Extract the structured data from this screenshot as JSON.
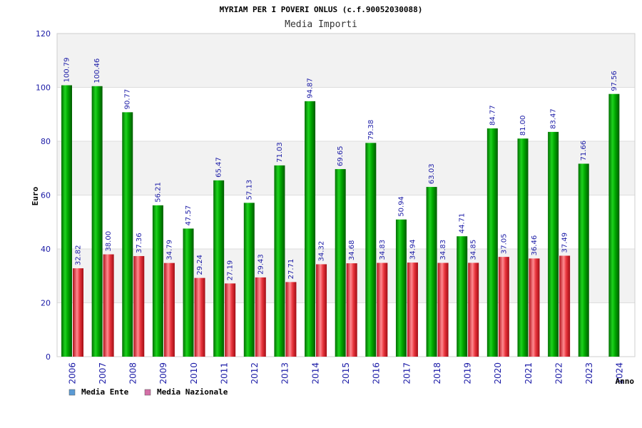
{
  "chart_data": {
    "type": "bar",
    "title": "MYRIAM PER I POVERI ONLUS (c.f.90052030088)",
    "subtitle": "Media Importi",
    "xlabel": "Anno",
    "ylabel": "Euro",
    "ylim": [
      0,
      120
    ],
    "yticks": [
      0,
      20,
      40,
      60,
      80,
      100,
      120
    ],
    "grid": true,
    "legend_position": "bottom-left",
    "categories": [
      "2006",
      "2007",
      "2008",
      "2009",
      "2010",
      "2011",
      "2012",
      "2013",
      "2014",
      "2015",
      "2016",
      "2017",
      "2018",
      "2019",
      "2020",
      "2021",
      "2022",
      "2023",
      "2024"
    ],
    "series": [
      {
        "name": "Media Ente",
        "legend_color": "#5b9bd5",
        "bar_color": "#00b400",
        "values": [
          100.79,
          100.46,
          90.77,
          56.21,
          47.57,
          65.47,
          57.13,
          71.03,
          94.87,
          69.65,
          79.38,
          50.94,
          63.03,
          44.71,
          84.77,
          81.0,
          83.47,
          71.66,
          97.56
        ],
        "labels": [
          "100.79",
          "100.46",
          "90.77",
          "56.21",
          "47.57",
          "65.47",
          "57.13",
          "71.03",
          "94.87",
          "69.65",
          "79.38",
          "50.94",
          "63.03",
          "44.71",
          "84.77",
          "81.00",
          "83.47",
          "71.66",
          "97.56"
        ]
      },
      {
        "name": "Media Nazionale",
        "legend_color": "#d36fa6",
        "bar_color": "#e0202a",
        "values": [
          32.82,
          38.0,
          37.36,
          34.79,
          29.24,
          27.19,
          29.43,
          27.71,
          34.32,
          34.68,
          34.83,
          34.94,
          34.83,
          34.85,
          37.05,
          36.46,
          37.49,
          null,
          null
        ],
        "labels": [
          "32.82",
          "38.00",
          "37.36",
          "34.79",
          "29.24",
          "27.19",
          "29.43",
          "27.71",
          "34.32",
          "34.68",
          "34.83",
          "34.94",
          "34.83",
          "34.85",
          "37.05",
          "36.46",
          "37.49",
          "",
          ""
        ]
      }
    ]
  }
}
